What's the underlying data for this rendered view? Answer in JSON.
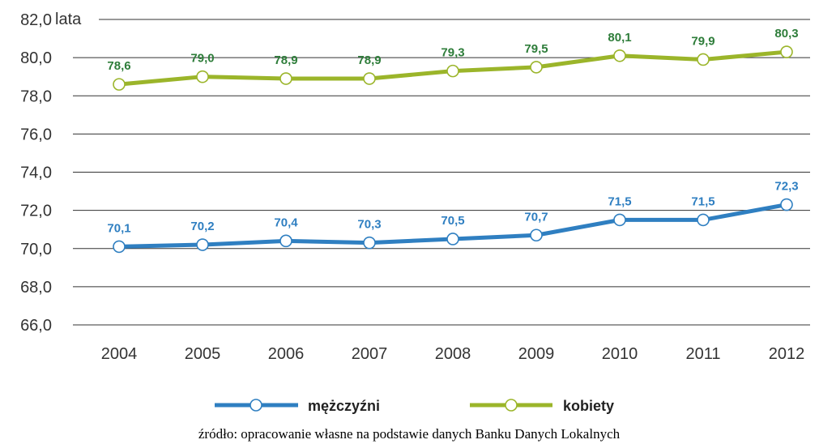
{
  "chart_data": {
    "type": "line",
    "unit_label": "lata",
    "categories": [
      "2004",
      "2005",
      "2006",
      "2007",
      "2008",
      "2009",
      "2010",
      "2011",
      "2012"
    ],
    "y_ticks": [
      "82,0",
      "80,0",
      "78,0",
      "76,0",
      "74,0",
      "72,0",
      "70,0",
      "68,0",
      "66,0"
    ],
    "ylim": [
      66,
      82
    ],
    "grid": true,
    "legend_position": "bottom",
    "series": [
      {
        "name": "mężczyźni",
        "color": "#2f7fc1",
        "values": [
          70.1,
          70.2,
          70.4,
          70.3,
          70.5,
          70.7,
          71.5,
          71.5,
          72.3
        ],
        "labels": [
          "70,1",
          "70,2",
          "70,4",
          "70,3",
          "70,5",
          "70,7",
          "71,5",
          "71,5",
          "72,3"
        ]
      },
      {
        "name": "kobiety",
        "color": "#9bb52a",
        "label_color": "#2e7d3a",
        "values": [
          78.6,
          79.0,
          78.9,
          78.9,
          79.3,
          79.5,
          80.1,
          79.9,
          80.3
        ],
        "labels": [
          "78,6",
          "79,0",
          "78,9",
          "78,9",
          "79,3",
          "79,5",
          "80,1",
          "79,9",
          "80,3"
        ]
      }
    ]
  },
  "source_note": "źródło: opracowanie własne na podstawie danych Banku Danych Lokalnych"
}
